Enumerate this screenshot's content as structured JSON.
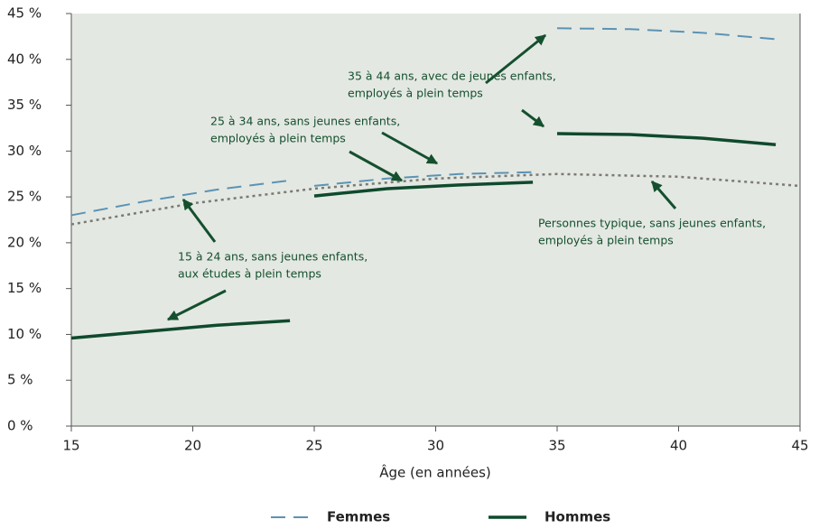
{
  "chart_data": {
    "type": "line",
    "x_label": "Âge (en années)",
    "xlim": [
      15,
      45
    ],
    "xticks": [
      15,
      20,
      25,
      30,
      35,
      40,
      45
    ],
    "ylim": [
      0,
      45
    ],
    "yticks": [
      {
        "value": 0,
        "label": "0 %"
      },
      {
        "value": 5,
        "label": "5 %"
      },
      {
        "value": 10,
        "label": "10 %"
      },
      {
        "value": 15,
        "label": "15 %"
      },
      {
        "value": 20,
        "label": "20 %"
      },
      {
        "value": 25,
        "label": "25 %"
      },
      {
        "value": 30,
        "label": "30 %"
      },
      {
        "value": 35,
        "label": "35 %"
      },
      {
        "value": 40,
        "label": "40 %"
      },
      {
        "value": 45,
        "label": "45 %"
      }
    ],
    "grid": false,
    "legend": "bottom",
    "series": [
      {
        "name": "Femmes",
        "color": "#5b93b4",
        "dash": "dashed",
        "segments": [
          {
            "x": [
              15,
              18,
              21,
              24
            ],
            "values": [
              23.0,
              24.5,
              25.8,
              26.8
            ]
          },
          {
            "x": [
              25,
              28,
              31,
              34
            ],
            "values": [
              26.2,
              27.0,
              27.5,
              27.7
            ]
          },
          {
            "x": [
              35,
              38,
              41,
              44
            ],
            "values": [
              43.4,
              43.3,
              42.9,
              42.2
            ]
          }
        ]
      },
      {
        "name": "Hommes",
        "color": "#0f4a2c",
        "dash": "solid",
        "segments": [
          {
            "x": [
              15,
              18,
              21,
              24
            ],
            "values": [
              9.6,
              10.3,
              11.0,
              11.5
            ]
          },
          {
            "x": [
              25,
              28,
              31,
              34
            ],
            "values": [
              25.1,
              25.9,
              26.3,
              26.6
            ]
          },
          {
            "x": [
              35,
              38,
              41,
              44
            ],
            "values": [
              31.9,
              31.8,
              31.4,
              30.7
            ]
          }
        ]
      },
      {
        "color": "#7a7a72",
        "dash": "dotted",
        "segments": [
          {
            "x": [
              15,
              20,
              25,
              30,
              35,
              40,
              45
            ],
            "values": [
              22.0,
              24.3,
              25.9,
              27.0,
              27.5,
              27.2,
              26.2
            ]
          }
        ]
      }
    ],
    "annotations": [
      {
        "lines": [
          "35 à 44 ans, avec de jeunes enfants,",
          "employés à plein temps"
        ]
      },
      {
        "lines": [
          "25 à 34 ans, sans jeunes enfants,",
          "employés à plein temps"
        ]
      },
      {
        "lines": [
          "15 à 24 ans, sans jeunes enfants,",
          "aux études à plein temps"
        ]
      },
      {
        "lines": [
          "Personnes typique, sans jeunes enfants,",
          "employés à plein temps"
        ]
      }
    ]
  }
}
